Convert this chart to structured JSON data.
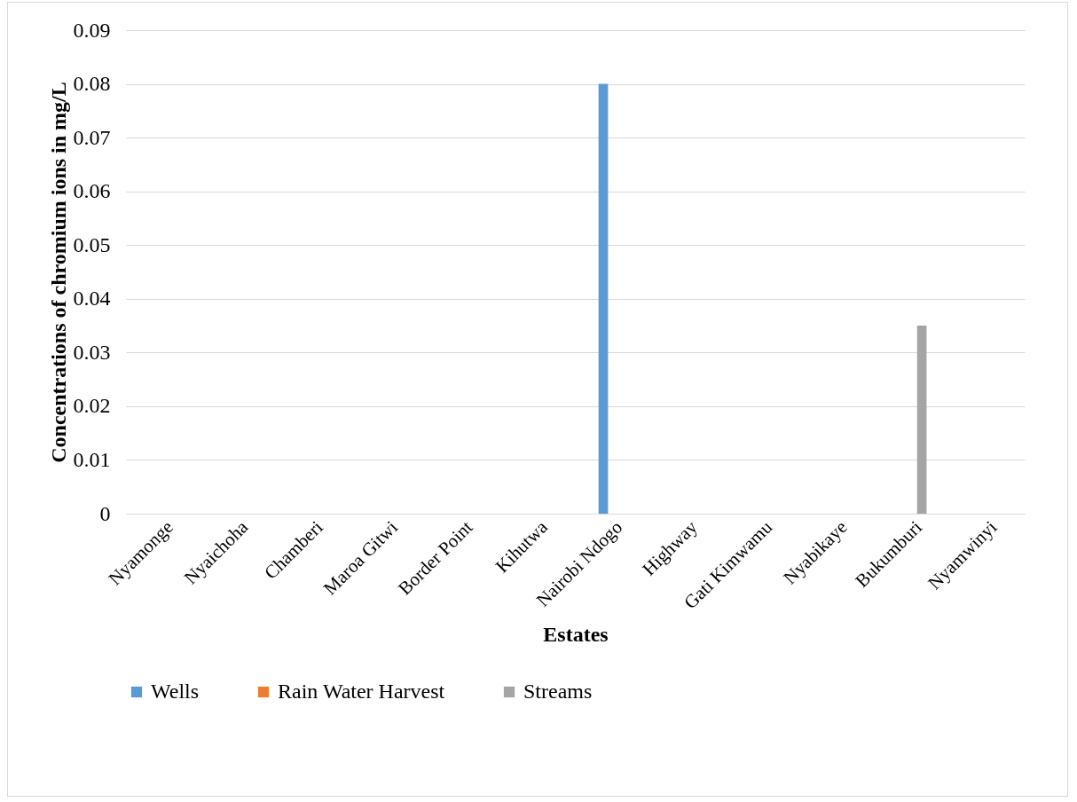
{
  "chart_data": {
    "type": "bar",
    "xlabel": "Estates",
    "ylabel": "Concentrations of chromium ions in mg/L",
    "categories": [
      "Nyamonge",
      "Nyaichoha",
      "Chamberi",
      "Maroa Gitwi",
      "Border Point",
      "Kihutwa",
      "Nairobi Ndogo",
      "Highway",
      "Gati Kimwamu",
      "Nyabikaye",
      "Bukumburi",
      "Nyamwinyi"
    ],
    "series": [
      {
        "name": "Wells",
        "color": "#5b9bd5",
        "values": [
          0,
          0,
          0,
          0,
          0,
          0,
          0.08,
          0,
          0,
          0,
          0,
          0
        ]
      },
      {
        "name": "Rain Water Harvest",
        "color": "#ed7d31",
        "values": [
          0,
          0,
          0,
          0,
          0,
          0,
          0,
          0,
          0,
          0,
          0,
          0
        ]
      },
      {
        "name": "Streams",
        "color": "#a5a5a5",
        "values": [
          0,
          0,
          0,
          0,
          0,
          0,
          0,
          0,
          0,
          0,
          0.035,
          0
        ]
      }
    ],
    "ylim": [
      0,
      0.09
    ],
    "yticks": [
      0,
      0.01,
      0.02,
      0.03,
      0.04,
      0.05,
      0.06,
      0.07,
      0.08,
      0.09
    ],
    "grid": "y",
    "legend": "bottom"
  }
}
